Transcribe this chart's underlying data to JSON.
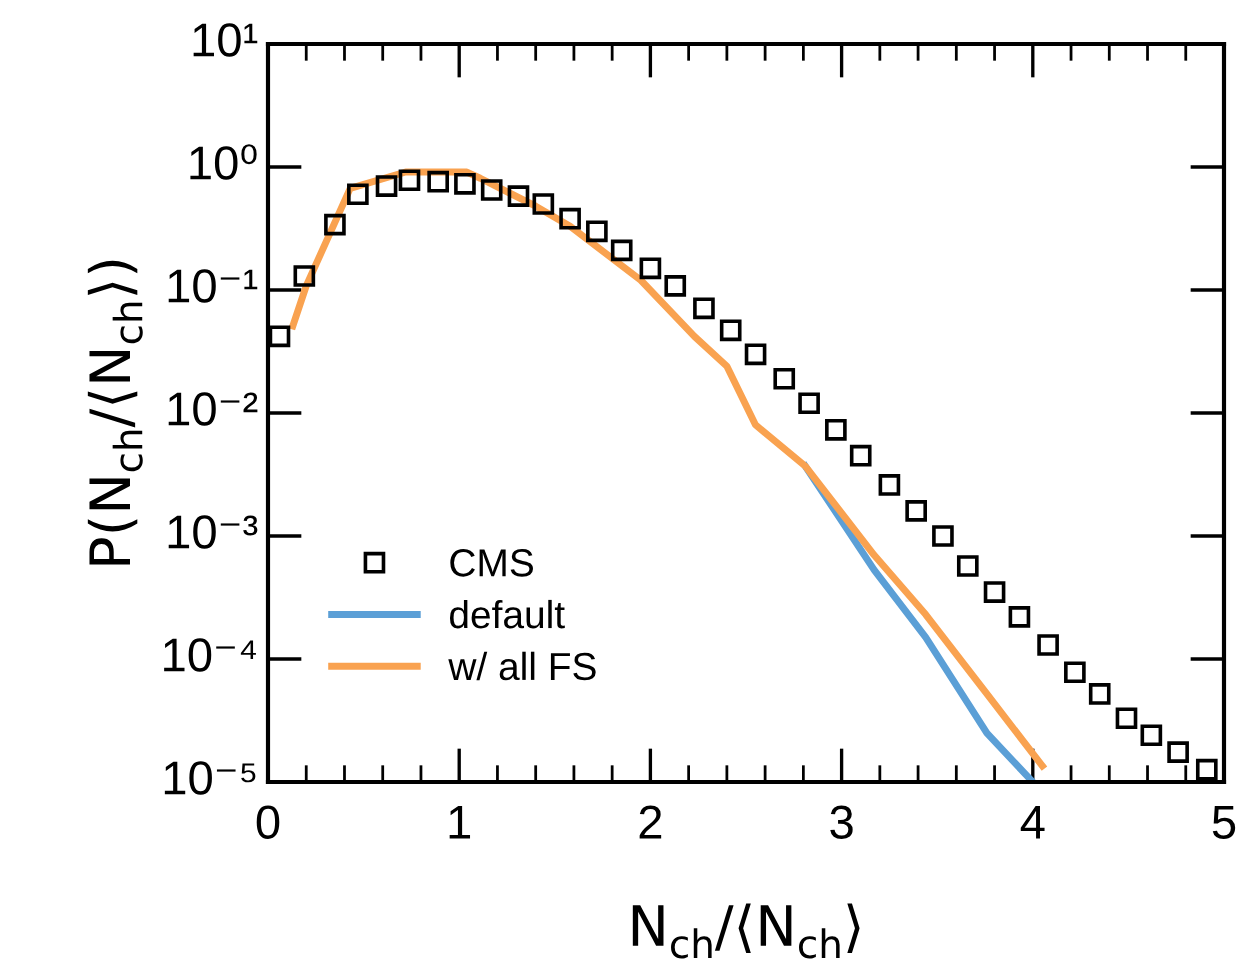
{
  "chart_data": {
    "type": "line",
    "xlabel": "N$_{ch}$/⟨N$_{ch}$⟩",
    "ylabel": "P(N$_{ch}$/⟨N$_{ch}$⟩)",
    "log": "y",
    "xlim": [
      0,
      5
    ],
    "xticks": [
      0,
      1,
      2,
      3,
      4,
      5
    ],
    "ylim": [
      1e-05,
      10
    ],
    "yticks": [
      {
        "value": 1e-05,
        "label": "10⁻⁵"
      },
      {
        "value": 0.0001,
        "label": "10⁻⁴"
      },
      {
        "value": 0.001,
        "label": "10⁻³"
      },
      {
        "value": 0.01,
        "label": "10⁻²"
      },
      {
        "value": 0.1,
        "label": "10⁻¹"
      },
      {
        "value": 1,
        "label": "10⁰"
      },
      {
        "value": 10,
        "label": "10¹"
      }
    ],
    "legend": "bottom left",
    "grid": false,
    "series": [
      {
        "name": "CMS",
        "type": "scatter",
        "marker": "square",
        "color": "#000000",
        "x": [
          0.06,
          0.19,
          0.35,
          0.47,
          0.62,
          0.74,
          0.89,
          1.03,
          1.17,
          1.31,
          1.44,
          1.58,
          1.72,
          1.85,
          2.0,
          2.13,
          2.28,
          2.42,
          2.55,
          2.7,
          2.83,
          2.97,
          3.1,
          3.25,
          3.39,
          3.53,
          3.66,
          3.8,
          3.93,
          4.08,
          4.22,
          4.35,
          4.49,
          4.62,
          4.76,
          4.91
        ],
        "values": [
          0.042,
          0.13,
          0.34,
          0.6,
          0.7,
          0.78,
          0.76,
          0.73,
          0.65,
          0.58,
          0.5,
          0.38,
          0.3,
          0.21,
          0.15,
          0.108,
          0.071,
          0.047,
          0.03,
          0.019,
          0.012,
          0.0073,
          0.0045,
          0.0026,
          0.0016,
          0.001,
          0.00057,
          0.00035,
          0.00022,
          0.00013,
          7.8e-05,
          5.2e-05,
          3.3e-05,
          2.4e-05,
          1.75e-05,
          1.26e-05
        ]
      },
      {
        "name": "default",
        "color": "#5b9fd6",
        "x": [
          2.81,
          3.17,
          3.44,
          3.76,
          4.0
        ],
        "values": [
          0.0037,
          0.00053,
          0.00015,
          2.5e-05,
          1e-05
        ]
      },
      {
        "name": "w/ all FS",
        "color": "#f9a250",
        "x": [
          0.13,
          0.2,
          0.43,
          0.72,
          1.04,
          1.11,
          1.4,
          1.58,
          1.95,
          2.23,
          2.4,
          2.55,
          2.81,
          3.17,
          3.44,
          3.76,
          4.05
        ],
        "values": [
          0.051,
          0.108,
          0.67,
          0.91,
          0.91,
          0.81,
          0.48,
          0.33,
          0.12,
          0.042,
          0.024,
          0.008,
          0.0037,
          0.0007,
          0.00023,
          5.2e-05,
          1.35e-05
        ]
      }
    ]
  }
}
